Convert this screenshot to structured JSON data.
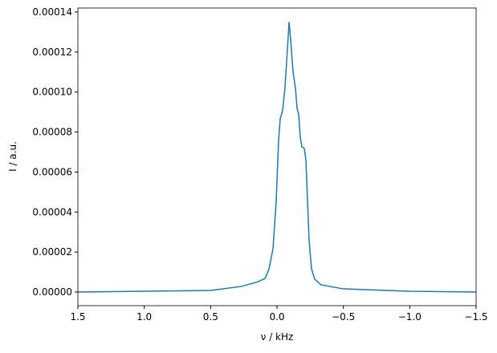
{
  "chart_data": {
    "type": "line",
    "xlabel": "ν / kHz",
    "ylabel": "I / a.u.",
    "x": [
      1.5,
      0.5,
      0.27,
      0.15,
      0.09,
      0.06,
      0.03,
      0.006,
      -0.012,
      -0.024,
      -0.042,
      -0.06,
      -0.079,
      -0.091,
      -0.103,
      -0.121,
      -0.139,
      -0.151,
      -0.163,
      -0.175,
      -0.187,
      -0.206,
      -0.218,
      -0.23,
      -0.242,
      -0.26,
      -0.284,
      -0.333,
      -0.5,
      -1.0,
      -1.5
    ],
    "series": [
      {
        "color": "#1f77b4",
        "values": [
          0,
          8e-07,
          2.8e-06,
          5e-06,
          6.8e-06,
          1.16e-05,
          2.17e-05,
          4.57e-05,
          7.58e-05,
          8.66e-05,
          9.06e-05,
          0.000102,
          0.000122,
          0.000135,
          0.000126,
          0.00011,
          0.000102,
          9.18e-05,
          8.9e-05,
          7.78e-05,
          7.26e-05,
          7.18e-05,
          6.58e-05,
          4.57e-05,
          2.57e-05,
          1.16e-05,
          6.4e-06,
          3.6e-06,
          1.6e-06,
          4e-07,
          0
        ]
      }
    ],
    "xlim": [
      1.5,
      -1.5
    ],
    "xticks": [
      1.5,
      {
        "value": 1.0,
        "label": "1.0"
      },
      0.5,
      {
        "value": 0,
        "label": "0.0"
      },
      {
        "value": -0.5,
        "label": "−0.5"
      },
      {
        "value": -1.0,
        "label": "−1.0"
      },
      {
        "value": -1.5,
        "label": "−1.5"
      }
    ],
    "ylim": [
      -6.8e-06,
      0.000142
    ],
    "yticks": [
      {
        "value": 0,
        "label": "0.00000"
      },
      {
        "value": 2e-05,
        "label": "0.00002"
      },
      {
        "value": 4e-05,
        "label": "0.00004"
      },
      {
        "value": 6e-05,
        "label": "0.00006"
      },
      {
        "value": 8e-05,
        "label": "0.00008"
      },
      {
        "value": 0.0001,
        "label": "0.00010"
      },
      {
        "value": 0.00012,
        "label": "0.00012"
      },
      {
        "value": 0.00014,
        "label": "0.00014"
      }
    ],
    "grid": false
  }
}
